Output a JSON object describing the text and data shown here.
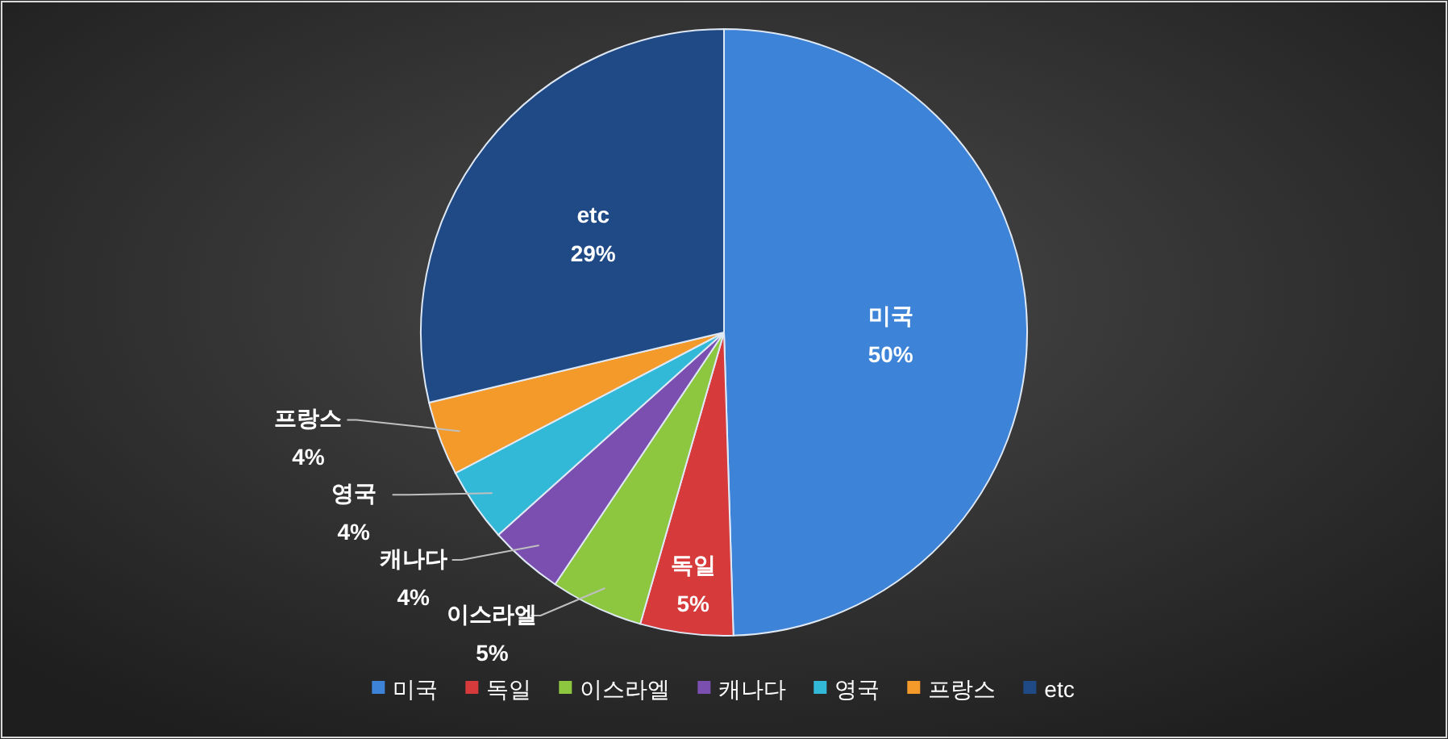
{
  "chart_data": {
    "type": "pie",
    "categories": [
      "미국",
      "독일",
      "이스라엘",
      "캐나다",
      "영국",
      "프랑스",
      "etc"
    ],
    "values": [
      50,
      5,
      5,
      4,
      4,
      4,
      29
    ],
    "colors": [
      "#3d83d8",
      "#d63a3a",
      "#8dc63f",
      "#7a4fb0",
      "#33b9d8",
      "#f39a2b",
      "#1f4a86"
    ],
    "value_labels": [
      "50%",
      "5%",
      "5%",
      "4%",
      "4%",
      "4%",
      "29%"
    ],
    "legend": "bottom"
  }
}
